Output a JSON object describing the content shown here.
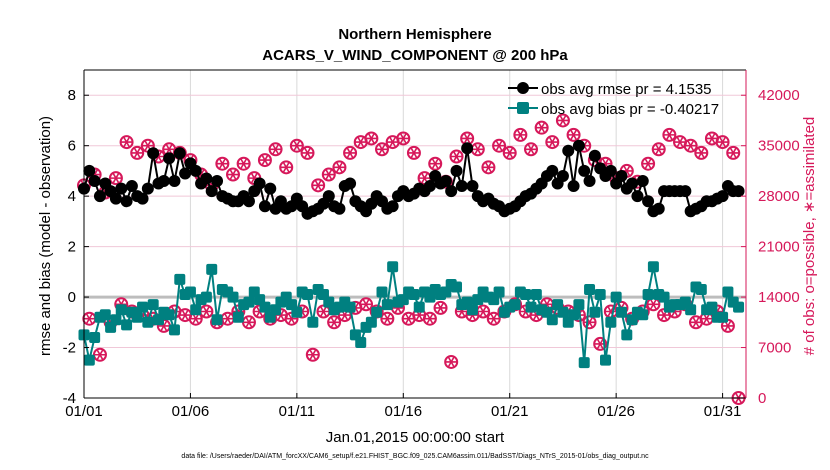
{
  "chart_data": {
    "type": "line",
    "title": [
      "Northern Hemisphere",
      "ACARS_V_WIND_COMPONENT @ 200 hPa"
    ],
    "xlabel": "Jan.01,2015 00:00:00 start",
    "ylabel": "rmse and bias (model - observation)",
    "ylabel_right": "# of obs: o=possible, ∗=assimilated",
    "caption": "data file: /Users/raeder/DAI/ATM_forcXX/CAM6_setup/f.e21.FHIST_BGC.f09_025.CAM6assim.011/BadSST/Diags_NTrS_2015-01/obs_diag_output.nc",
    "x_units": "days since Jan.01,2015 (6-hourly)",
    "xlim": [
      0,
      31.1
    ],
    "ylim": [
      -4,
      9
    ],
    "ylim_right": [
      0,
      45500
    ],
    "x_ticks": [
      {
        "v": 0,
        "label": "01/01"
      },
      {
        "v": 5,
        "label": "01/06"
      },
      {
        "v": 10,
        "label": "01/11"
      },
      {
        "v": 15,
        "label": "01/16"
      },
      {
        "v": 20,
        "label": "01/21"
      },
      {
        "v": 25,
        "label": "01/26"
      },
      {
        "v": 30,
        "label": "01/31"
      }
    ],
    "y_ticks": [
      -4,
      -2,
      0,
      2,
      4,
      6,
      8
    ],
    "y_ticks_right": [
      0,
      7000,
      14000,
      21000,
      28000,
      35000,
      42000
    ],
    "grid": true,
    "legend_position": "top-right",
    "colors": {
      "rmse": "#000000",
      "bias": "#008080",
      "counts": "#d6185a",
      "zero": "#bdbdbd",
      "grid": "#f0c8d8",
      "vgrid": "#d9d9d9"
    },
    "series": [
      {
        "name": "obs avg rmse pr = 4.1535",
        "marker": "circle",
        "values": [
          4.3,
          5.0,
          4.6,
          4.0,
          4.5,
          4.2,
          3.9,
          4.3,
          3.8,
          4.4,
          4.0,
          3.9,
          4.3,
          5.7,
          4.5,
          4.6,
          5.5,
          4.6,
          5.7,
          4.9,
          5.3,
          5.0,
          4.5,
          4.7,
          4.2,
          4.6,
          4.0,
          3.9,
          3.8,
          3.8,
          4.0,
          3.8,
          4.2,
          4.5,
          3.6,
          4.3,
          3.5,
          3.8,
          3.5,
          3.6,
          3.9,
          3.6,
          3.3,
          3.4,
          3.5,
          3.7,
          4.0,
          3.6,
          3.5,
          4.4,
          4.5,
          3.8,
          3.6,
          3.4,
          3.7,
          4.0,
          3.8,
          3.5,
          3.6,
          4.0,
          4.2,
          4.0,
          4.1,
          4.3,
          4.2,
          4.4,
          4.8,
          4.5,
          4.6,
          4.2,
          5.0,
          4.4,
          5.9,
          4.4,
          4.0,
          3.8,
          3.9,
          3.7,
          3.6,
          3.4,
          3.5,
          3.6,
          3.8,
          4.0,
          4.1,
          4.3,
          4.5,
          4.8,
          5.0,
          4.5,
          4.8,
          5.8,
          4.4,
          6.0,
          5.0,
          4.6,
          5.6,
          5.1,
          4.8,
          5.0,
          4.5,
          4.8,
          4.3,
          4.5,
          4.0,
          4.6,
          3.8,
          3.4,
          3.5,
          4.2,
          4.2,
          4.2,
          4.2,
          4.2,
          3.4,
          3.5,
          3.6,
          3.8,
          3.8,
          3.9,
          4.0,
          4.4,
          4.2,
          4.2
        ]
      },
      {
        "name": "obs avg bias pr = -0.40217",
        "marker": "square",
        "values": [
          -1.5,
          -2.5,
          -1.6,
          -0.8,
          -0.7,
          -1.2,
          -0.9,
          -0.5,
          -1.1,
          -0.6,
          -0.8,
          -0.4,
          -1.0,
          -0.3,
          -0.9,
          -0.6,
          -0.7,
          -1.3,
          0.7,
          0.1,
          0.2,
          -0.5,
          -0.1,
          0.0,
          1.1,
          -0.9,
          0.3,
          0.2,
          0.0,
          -0.8,
          -0.3,
          -0.2,
          0.2,
          -0.1,
          -0.4,
          -0.8,
          -0.5,
          -0.2,
          0.0,
          -0.3,
          -0.6,
          0.2,
          0.1,
          -1.0,
          0.3,
          0.1,
          -0.2,
          -0.5,
          -0.4,
          -0.2,
          -0.4,
          -1.5,
          -1.8,
          -1.2,
          -1.0,
          -0.6,
          0.2,
          -0.3,
          1.2,
          -0.2,
          -0.1,
          0.2,
          0.1,
          -0.4,
          0.2,
          0.0,
          0.3,
          0.1,
          0.2,
          0.5,
          0.4,
          -0.3,
          -0.2,
          -0.5,
          -0.1,
          0.2,
          0.0,
          -0.1,
          0.2,
          -0.6,
          -0.4,
          -0.3,
          0.2,
          0.1,
          -0.4,
          0.1,
          -0.5,
          -0.6,
          -0.9,
          -0.3,
          -0.6,
          -1.0,
          -0.7,
          -0.3,
          -2.6,
          0.3,
          -0.6,
          0.1,
          -2.5,
          -1.0,
          0.0,
          -0.6,
          -1.5,
          -0.9,
          -0.6,
          -0.7,
          0.1,
          1.2,
          0.1,
          0.0,
          -0.4,
          -0.3,
          -0.3,
          -0.2,
          -0.5,
          0.4,
          0.3,
          -0.5,
          -0.4,
          -0.8,
          -0.8,
          0.2,
          -0.2,
          -0.4
        ]
      },
      {
        "name": "# of obs",
        "axis": "right",
        "marker": "circle-asterisk",
        "values": [
          29500,
          11000,
          31000,
          6000,
          28500,
          10500,
          30500,
          13000,
          35500,
          12000,
          34000,
          11500,
          35000,
          11000,
          33500,
          10000,
          34500,
          12000,
          34000,
          11500,
          33000,
          11000,
          31000,
          12000,
          29500,
          10500,
          32500,
          11000,
          31000,
          12000,
          32500,
          10500,
          30500,
          12000,
          33000,
          11000,
          34500,
          11500,
          32000,
          11000,
          35000,
          12000,
          34000,
          6000,
          29500,
          12000,
          31000,
          10500,
          32000,
          11500,
          34000,
          12500,
          35500,
          13000,
          36000,
          12000,
          34500,
          11000,
          35500,
          12500,
          36000,
          11000,
          34000,
          11500,
          30500,
          11000,
          32500,
          12500,
          30000,
          5000,
          33500,
          12000,
          36000,
          11500,
          34500,
          12000,
          32000,
          11000,
          35000,
          12000,
          34000,
          13000,
          36500,
          12000,
          34500,
          11500,
          37500,
          13000,
          35500,
          12500,
          38500,
          12000,
          36500,
          11500,
          35000,
          10500,
          33000,
          7500,
          32500,
          12000,
          30500,
          12500,
          31500,
          11000,
          30000,
          12000,
          32500,
          13000,
          34500,
          11500,
          36500,
          12000,
          35500,
          13000,
          35000,
          10500,
          34000,
          11000,
          36000,
          12000,
          35500,
          10000,
          34000,
          0
        ]
      }
    ]
  }
}
